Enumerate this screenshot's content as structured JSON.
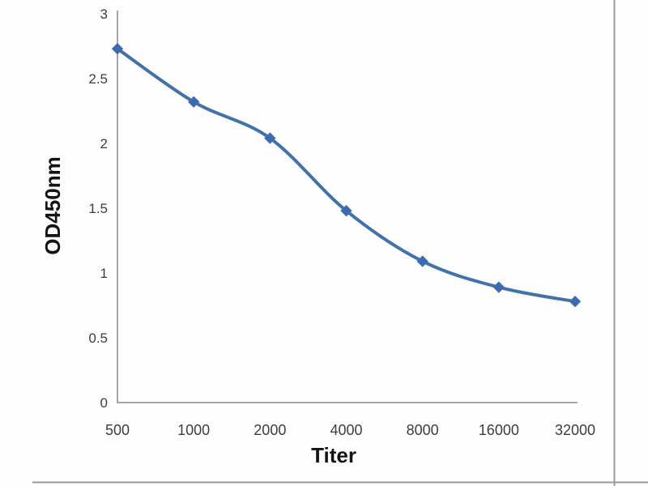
{
  "chart_data": {
    "type": "line",
    "title": "",
    "categories": [
      "500",
      "1000",
      "2000",
      "4000",
      "8000",
      "16000",
      "32000"
    ],
    "x_values": [
      500,
      1000,
      2000,
      4000,
      8000,
      16000,
      32000
    ],
    "series": [
      {
        "name": "OD450nm",
        "values": [
          2.73,
          2.32,
          2.04,
          1.48,
          1.09,
          0.89,
          0.78
        ]
      }
    ],
    "xlabel": "Titer",
    "ylabel": "OD450nm",
    "ylim": [
      0,
      3
    ],
    "yticks": [
      0,
      0.5,
      1,
      1.5,
      2,
      2.5,
      3
    ],
    "ytick_labels": [
      "0",
      "0.5",
      "1",
      "1.5",
      "2",
      "2.5",
      "3"
    ],
    "x_axis_scale": "log2-categorical",
    "grid": false,
    "legend": "none",
    "smooth_line": true,
    "marker": "diamond",
    "line_color": "#4272ac",
    "marker_color": "#3c69b0",
    "axis_color": "#a6a6a6",
    "tick_text_color": "#3d3d3d",
    "title_text_color": "#141414"
  },
  "frame": {
    "border_color": "#9b9b9b"
  }
}
